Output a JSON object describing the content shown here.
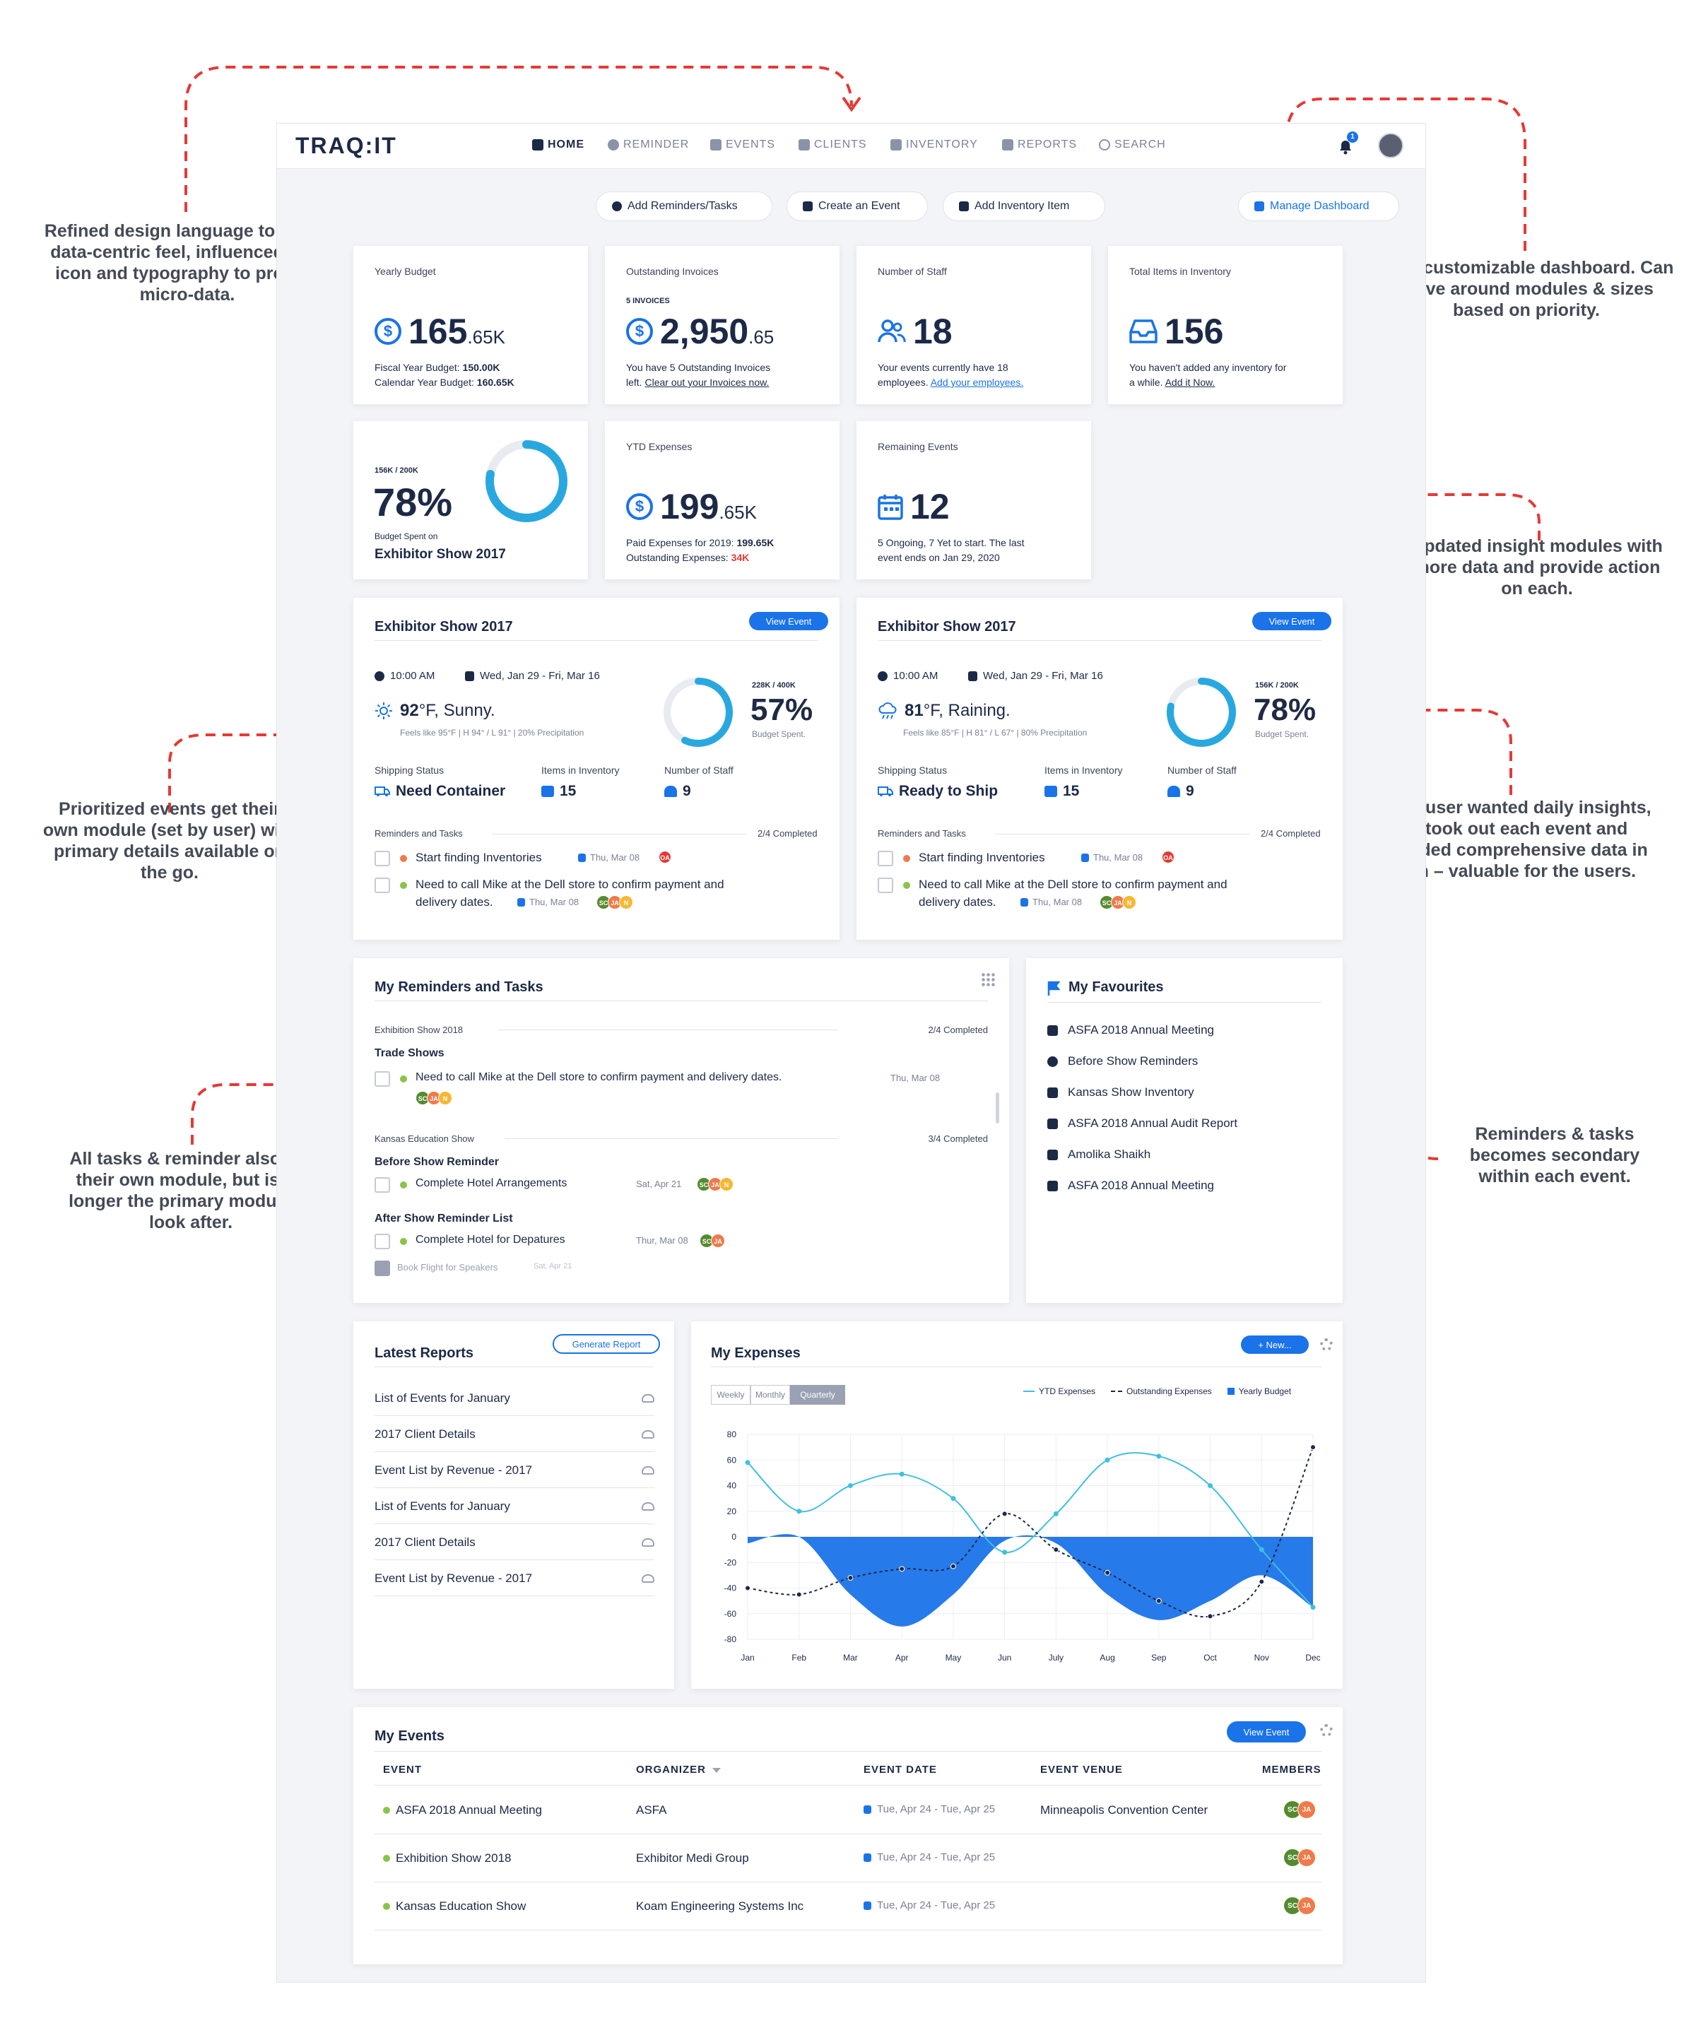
{
  "app": {
    "logo": "TRAQ:IT",
    "nav": [
      "HOME",
      "REMINDER",
      "EVENTS",
      "CLIENTS",
      "INVENTORY",
      "REPORTS",
      "SEARCH"
    ],
    "notif_count": "1"
  },
  "actions": [
    "Add Reminders/Tasks",
    "Create an Event",
    "Add Inventory Item",
    "Manage Dashboard"
  ],
  "annotations": [
    "Refined design language to give a data-centric feel, influenced with icon and typography to provide micro-data.",
    "User customizable dashboard. Can move around modules & sizes based on priority.",
    "Updated insight modules with more data and provide action on each.",
    "Prioritized events get their own module (set by user) with primary details available on the go.",
    "Since user wanted daily insights, we took out each event and provided comprehensive data in each – valuable for the users.",
    "All tasks & reminder also get their own module, but is no longer the primary module to look after.",
    "Reminders & tasks becomes secondary within each event."
  ],
  "stats": {
    "budget": {
      "title": "Yearly Budget",
      "value": "165",
      "decimal": ".65K",
      "l1a": "Fiscal Year Budget: ",
      "l1b": "150.00K",
      "l2a": "Calendar Year Budget: ",
      "l2b": "160.65K"
    },
    "invoices": {
      "title": "Outstanding Invoices",
      "badge": "5 INVOICES",
      "value": "2,950",
      "decimal": ".65",
      "l1": "You have 5 Outstanding Invoices",
      "l2a": "left. ",
      "link": "Clear out your Invoices now."
    },
    "staff": {
      "title": "Number of Staff",
      "value": "18",
      "l1": "Your events currently have 18",
      "l2a": "employees. ",
      "link": "Add your employees."
    },
    "inventory": {
      "title": "Total Items in Inventory",
      "value": "156",
      "l1": "You haven't added any inventory for",
      "l2a": "a while. ",
      "link": "Add it Now."
    },
    "spent": {
      "ratio": "156K / 200K",
      "percent": "78%",
      "percent_value": 78,
      "label": "Budget Spent on",
      "event": "Exhibitor Show 2017"
    },
    "ytd": {
      "title": "YTD Expenses",
      "value": "199",
      "decimal": ".65K",
      "l1a": "Paid Expenses for 2019: ",
      "l1b": "199.65K",
      "l2a": "Outstanding Expenses: ",
      "l2b": "34K"
    },
    "remaining": {
      "title": "Remaining Events",
      "value": "12",
      "l1": "5 Ongoing, 7 Yet to start. The last",
      "l2": "event ends on Jan 29, 2020"
    }
  },
  "events": [
    {
      "title": "Exhibitor Show 2017",
      "btn": "View Event",
      "time": "10:00 AM",
      "dates": "Wed, Jan 29 - Fri, Mar 16",
      "temp": "92",
      "weather": "°F, Sunny.",
      "feels": "Feels like 95°F  |  H 94° / L 91°  |  20% Precipitation",
      "ratio": "228K / 400K",
      "percent": "57%",
      "percent_value": 57,
      "spent": "Budget Spent.",
      "ship_lbl": "Shipping Status",
      "ship": "Need Container",
      "inv_lbl": "Items in Inventory",
      "inv": "15",
      "staff_lbl": "Number of Staff",
      "staff": "9",
      "rem_lbl": "Reminders and Tasks",
      "rem_done": "2/4 Completed",
      "task1": "Start finding Inventories",
      "task1_date": "Thu, Mar 08",
      "task2a": "Need to call Mike at the Dell store to confirm payment and",
      "task2b": "delivery dates.",
      "task2_date": "Thu, Mar 08"
    },
    {
      "title": "Exhibitor Show 2017",
      "btn": "View Event",
      "time": "10:00 AM",
      "dates": "Wed, Jan 29 - Fri, Mar 16",
      "temp": "81",
      "weather": "°F, Raining.",
      "feels": "Feels like 85°F  |  H 81° / L 67°  |  80% Precipitation",
      "ratio": "156K / 200K",
      "percent": "78%",
      "percent_value": 78,
      "spent": "Budget Spent.",
      "ship_lbl": "Shipping Status",
      "ship": "Ready to Ship",
      "inv_lbl": "Items in Inventory",
      "inv": "15",
      "staff_lbl": "Number of Staff",
      "staff": "9",
      "rem_lbl": "Reminders and Tasks",
      "rem_done": "2/4 Completed",
      "task1": "Start finding Inventories",
      "task1_date": "Thu, Mar 08",
      "task2a": "Need to call Mike at the Dell store to confirm payment and",
      "task2b": "delivery dates.",
      "task2_date": "Thu, Mar 08"
    }
  ],
  "reminders": {
    "title": "My Reminders and Tasks",
    "g1": "Exhibition Show 2018",
    "g1_done": "2/4 Completed",
    "g1_sub": "Trade Shows",
    "g1_t1": "Need to call Mike at the Dell store to confirm payment and delivery dates.",
    "g1_t1_date": "Thu, Mar 08",
    "g2": "Kansas Education Show",
    "g2_done": "3/4 Completed",
    "g2_sub1": "Before Show Reminder",
    "g2_t1": "Complete Hotel Arrangements",
    "g2_t1_date": "Sat, Apr 21",
    "g2_sub2": "After Show Reminder List",
    "g2_t2": "Complete Hotel for Depatures",
    "g2_t2_date": "Thur, Mar 08",
    "g2_t3": "Book Flight for Speakers",
    "g2_t3_date": "Sat, Apr 21"
  },
  "favourites": {
    "title": "My Favourites",
    "items": [
      "ASFA 2018 Annual Meeting",
      "Before Show Reminders",
      "Kansas Show Inventory",
      "ASFA 2018 Annual Audit Report",
      "Amolika Shaikh",
      "ASFA 2018 Annual Meeting"
    ]
  },
  "reports": {
    "title": "Latest Reports",
    "btn": "Generate Report",
    "items": [
      "List of Events for January",
      "2017 Client Details",
      "Event List by Revenue - 2017",
      "List of Events for January",
      "2017 Client Details",
      "Event List by Revenue - 2017"
    ]
  },
  "expenses": {
    "title": "My Expenses",
    "btn": "+ New...",
    "tabs": [
      "Weekly",
      "Monthly",
      "Quarterly"
    ],
    "active_tab": "Quarterly"
  },
  "chart_data": {
    "type": "line",
    "categories": [
      "Jan",
      "Feb",
      "Mar",
      "Apr",
      "May",
      "Jun",
      "July",
      "Aug",
      "Sep",
      "Oct",
      "Nov",
      "Dec"
    ],
    "series": [
      {
        "name": "YTD Expenses",
        "style": "line",
        "values": [
          58,
          20,
          40,
          49,
          30,
          -12,
          18,
          60,
          63,
          40,
          -10,
          -55
        ]
      },
      {
        "name": "Outstanding Expenses",
        "style": "dashed",
        "values": [
          -40,
          -45,
          -32,
          -25,
          -23,
          18,
          -10,
          -28,
          -50,
          -62,
          -35,
          70
        ]
      },
      {
        "name": "Yearly Budget",
        "style": "area",
        "values": [
          -5,
          0,
          -45,
          -70,
          -45,
          -3,
          -5,
          -45,
          -65,
          -50,
          -30,
          -55
        ]
      }
    ],
    "ylim": [
      -80,
      80
    ],
    "yticks": [
      80,
      60,
      40,
      20,
      0,
      -20,
      -40,
      -60,
      -80
    ],
    "legend": "top-right",
    "colors": {
      "ytd": "#3fc0e0",
      "outstanding": "#1c2947",
      "budget": "#1a73e8"
    }
  },
  "my_events": {
    "title": "My Events",
    "btn": "View Event",
    "headers": [
      "EVENT",
      "ORGANIZER",
      "EVENT DATE",
      "EVENT VENUE",
      "MEMBERS"
    ],
    "rows": [
      {
        "event": "ASFA 2018 Annual Meeting",
        "organizer": "ASFA",
        "date": "Tue, Apr 24 - Tue, Apr 25",
        "venue": "Minneapolis Convention Center"
      },
      {
        "event": "Exhibition Show 2018",
        "organizer": "Exhibitor Medi Group",
        "date": "Tue, Apr 24 - Tue, Apr 25",
        "venue": ""
      },
      {
        "event": "Kansas Education Show",
        "organizer": "Koam Engineering Systems Inc",
        "date": "Tue, Apr 24 - Tue, Apr 25",
        "venue": ""
      }
    ]
  },
  "avatars": {
    "sc": "SC",
    "ja": "JA",
    "oa": "OA",
    "n": "N"
  }
}
